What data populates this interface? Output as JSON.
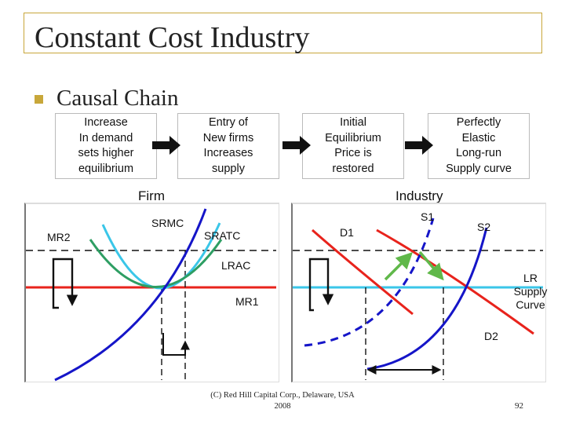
{
  "slide": {
    "title": "Constant Cost Industry",
    "bullet_text": "Causal Chain",
    "chain": [
      {
        "text": "Increase\nIn demand\nsets higher\nequilibrium"
      },
      {
        "text": "Entry of\nNew firms\nIncreases\nsupply"
      },
      {
        "text": "Initial\nEquilibrium\nPrice is\nrestored"
      },
      {
        "text": "Perfectly\nElastic\nLong-run\nSupply curve"
      }
    ],
    "firm_panel": {
      "label": "Firm",
      "mr2": "MR2",
      "srmc": "SRMC",
      "sratc": "SRATC",
      "lrac": "LRAC",
      "mr1": "MR1"
    },
    "industry_panel": {
      "label": "Industry",
      "d1": "D1",
      "s1": "S1",
      "s2": "S2",
      "lr_supply": "LR\nSupply\nCurve",
      "d2": "D2"
    },
    "footer": "(C) Red Hill Capital Corp., Delaware, USA\n2008",
    "page_number": "92",
    "colors": {
      "frame": "#c8a73a",
      "mr1": "#e8231c",
      "mc": "#1515c8",
      "atc_teal": "#2e9e63",
      "lrac_light": "#3ac6e8",
      "demand": "#e8231c",
      "adjust_arrow": "#60b84a"
    }
  }
}
